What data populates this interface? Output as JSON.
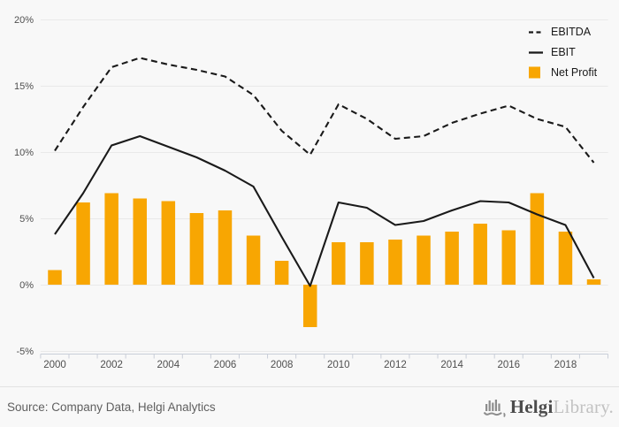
{
  "chart_data": {
    "type": "combo-bar-line",
    "title": "",
    "x": [
      2000,
      2001,
      2002,
      2003,
      2004,
      2005,
      2006,
      2007,
      2008,
      2009,
      2010,
      2011,
      2012,
      2013,
      2014,
      2015,
      2016,
      2017,
      2018,
      2019
    ],
    "series": [
      {
        "name": "EBITDA",
        "kind": "line",
        "dash": "dashed",
        "color": "#1a1a1a",
        "values": [
          10.1,
          13.4,
          16.4,
          17.1,
          16.6,
          16.2,
          15.7,
          14.3,
          11.6,
          9.8,
          13.6,
          12.5,
          11.0,
          11.2,
          12.2,
          12.9,
          13.5,
          12.5,
          11.9,
          9.2
        ]
      },
      {
        "name": "EBIT",
        "kind": "line",
        "dash": "solid",
        "color": "#1a1a1a",
        "values": [
          3.8,
          6.9,
          10.5,
          11.2,
          10.4,
          9.6,
          8.6,
          7.4,
          3.6,
          -0.1,
          6.2,
          5.8,
          4.5,
          4.8,
          5.6,
          6.3,
          6.2,
          5.3,
          4.5,
          0.5
        ]
      },
      {
        "name": "Net Profit",
        "kind": "bar",
        "color": "#f8a602",
        "values": [
          1.1,
          6.2,
          6.9,
          6.5,
          6.3,
          5.4,
          5.6,
          3.7,
          1.8,
          -3.2,
          3.2,
          3.2,
          3.4,
          3.7,
          4.0,
          4.6,
          4.1,
          6.9,
          4.0,
          0.4
        ]
      }
    ],
    "ylim": [
      -5,
      20
    ],
    "yticks": [
      20,
      15,
      10,
      5,
      0,
      -5
    ],
    "ytick_labels": [
      "20%",
      "15%",
      "10%",
      "5%",
      "0%",
      "-5%"
    ],
    "xtick_labels": [
      2000,
      2002,
      2004,
      2006,
      2008,
      2010,
      2012,
      2014,
      2016,
      2018
    ],
    "grid": true,
    "legend_position": "top-right"
  },
  "footer": {
    "source": "Source: Company Data, Helgi Analytics",
    "logo_primary": "Helgi",
    "logo_secondary": "Library."
  },
  "colors": {
    "background": "#f8f8f8",
    "grid": "#e9e9e9",
    "axis": "#c9ced8",
    "tick_text": "#4f4f4f",
    "bar": "#f8a602",
    "line": "#1a1a1a"
  }
}
